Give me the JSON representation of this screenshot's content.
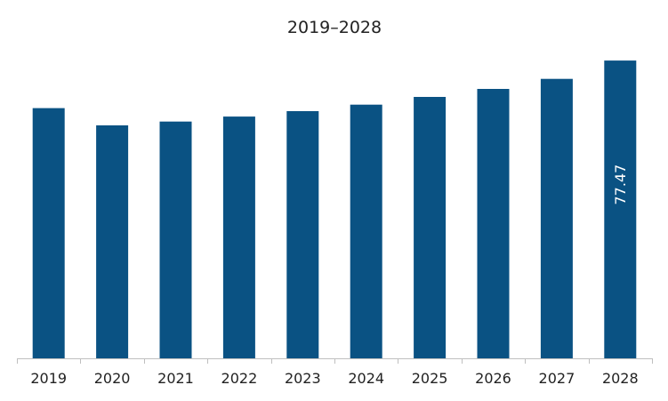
{
  "chart_data": {
    "type": "bar",
    "title": "2019–2028",
    "xlabel": "",
    "ylabel": "",
    "categories": [
      "2019",
      "2020",
      "2021",
      "2022",
      "2023",
      "2024",
      "2025",
      "2026",
      "2027",
      "2028"
    ],
    "values": [
      65.1,
      60.6,
      61.6,
      62.9,
      64.3,
      66.0,
      68.0,
      70.1,
      72.7,
      77.47
    ],
    "data_labels": [
      {
        "index": 9,
        "text": "77.47",
        "orientation": "vertical"
      }
    ],
    "ylim": [
      0,
      88.6
    ],
    "grid": false,
    "legend": "none",
    "bar_color": "#0a5283",
    "axis_color": "#bfbfbf"
  }
}
